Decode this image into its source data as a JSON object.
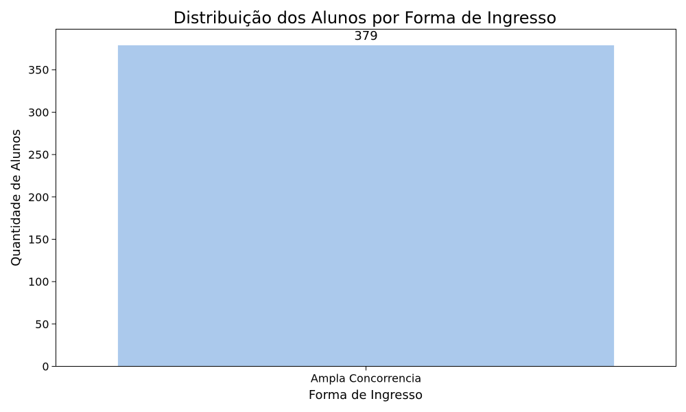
{
  "chart_data": {
    "type": "bar",
    "title": "Distribuição dos Alunos por Forma de Ingresso",
    "xlabel": "Forma de Ingresso",
    "ylabel": "Quantidade de Alunos",
    "categories": [
      "Ampla Concorrencia"
    ],
    "values": [
      379
    ],
    "data_labels": [
      "379"
    ],
    "ylim": [
      0,
      398
    ],
    "yticks": [
      0,
      50,
      100,
      150,
      200,
      250,
      300,
      350
    ],
    "grid": false,
    "legend": "none",
    "bar_color": "#abc9ec"
  }
}
